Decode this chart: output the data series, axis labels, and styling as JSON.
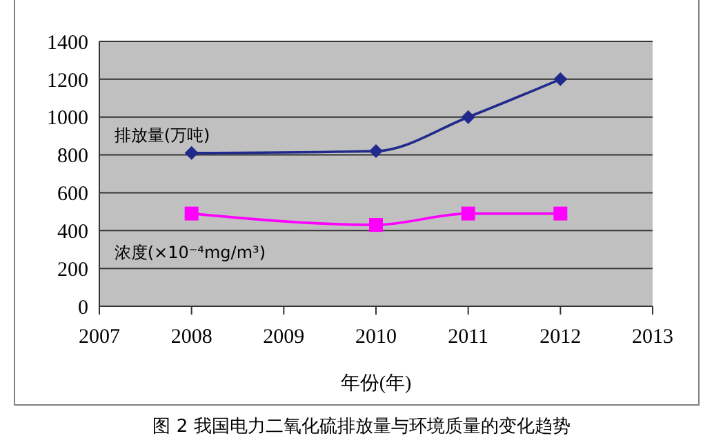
{
  "chart_data": {
    "type": "line",
    "title": "图 2 我国电力二氧化硫排放量与环境质量的变化趋势",
    "xlabel": "年份(年)",
    "x": [
      2008,
      2010,
      2011,
      2012
    ],
    "series": [
      {
        "name": "排放量(万吨)",
        "color": "#1f2a8c",
        "values": [
          810,
          820,
          1000,
          1200
        ],
        "marker": "diamond"
      },
      {
        "name": "浓度(×10⁻⁴mg/m³)",
        "color": "#ff00ff",
        "values": [
          490,
          430,
          490,
          490
        ],
        "marker": "square"
      }
    ],
    "xlim": [
      2007,
      2013
    ],
    "xticks": [
      2007,
      2008,
      2009,
      2010,
      2011,
      2012,
      2013
    ],
    "ylim": [
      0,
      1400
    ],
    "yticks": [
      0,
      200,
      400,
      600,
      800,
      1000,
      1200,
      1400
    ],
    "grid": "y",
    "legend": false
  }
}
